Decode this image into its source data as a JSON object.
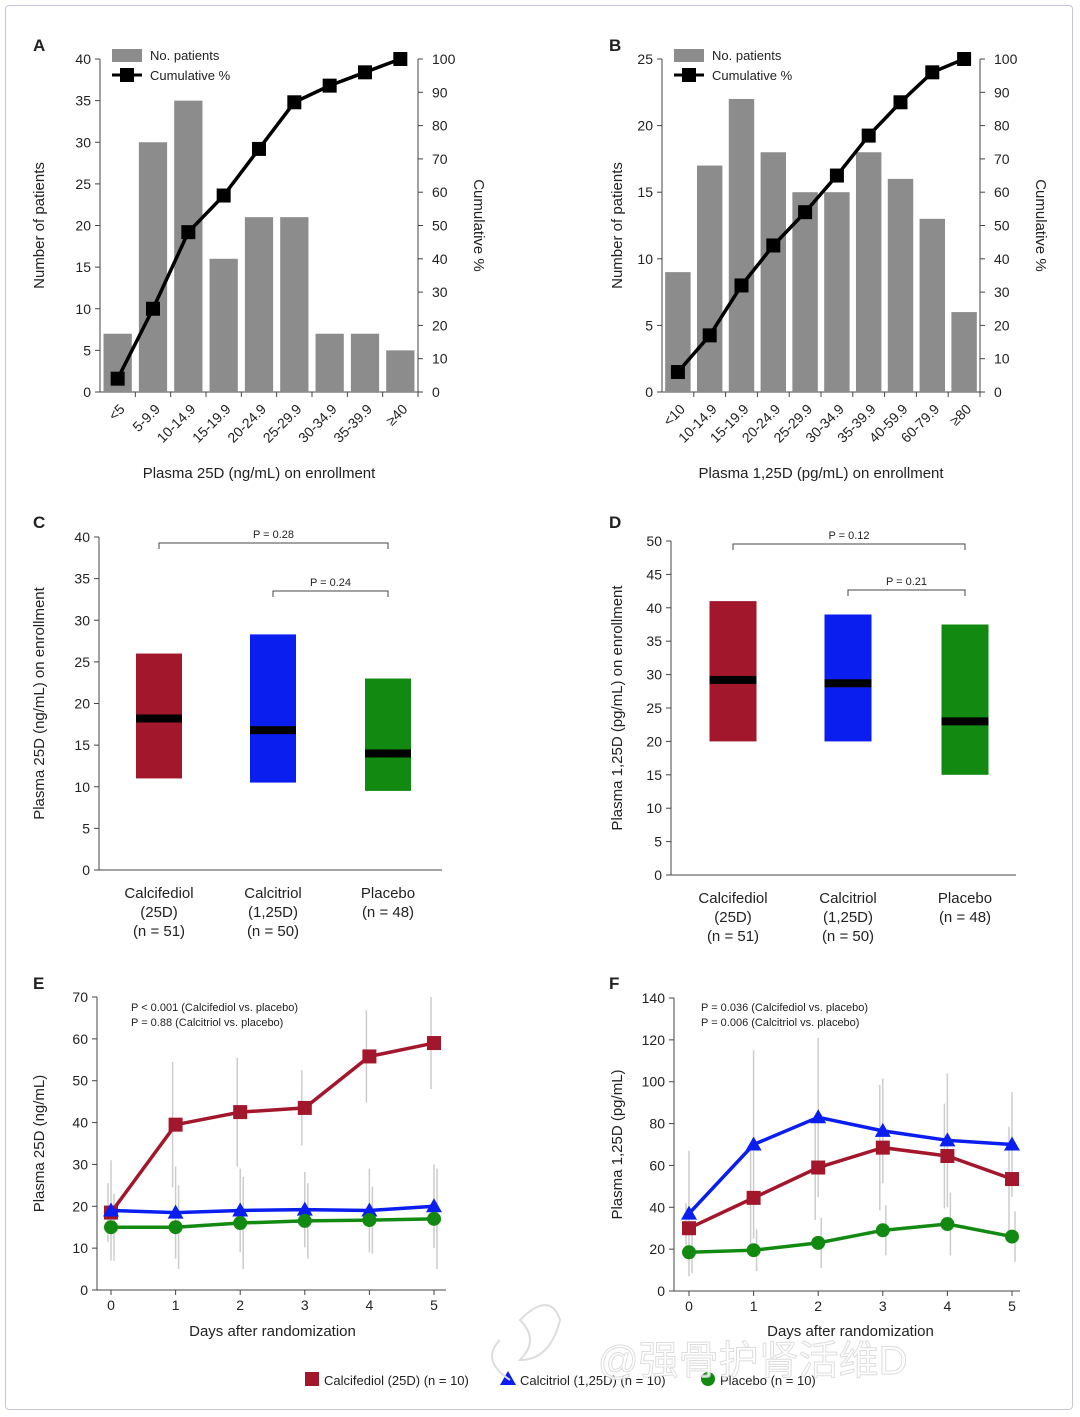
{
  "watermark": "@强骨护肾活维D",
  "colors": {
    "bar": "#8c8c8c",
    "line": "#000000",
    "calcifediol": "#a3172d",
    "calcitriol": "#0a1ef0",
    "placebo": "#128a12",
    "err": "#cccccc",
    "axis": "#444444"
  },
  "chart_data": [
    {
      "panel": "A",
      "type": "bar",
      "title": "",
      "categories": [
        "<5",
        "5-9.9",
        "10-14.9",
        "15-19.9",
        "20-24.9",
        "25-29.9",
        "30-34.9",
        "35-39.9",
        "≥40"
      ],
      "series": [
        {
          "name": "No. patients",
          "type": "bar",
          "values": [
            7,
            30,
            35,
            16,
            21,
            21,
            7,
            7,
            5
          ]
        },
        {
          "name": "Cumulative %",
          "type": "line",
          "axis": "right",
          "values": [
            4,
            25,
            48,
            59,
            73,
            87,
            92,
            96,
            100
          ]
        }
      ],
      "xlabel": "Plasma 25D (ng/mL) on enrollment",
      "ylabel": "Number of patients",
      "y2label": "Cumulative %",
      "ylim": [
        0,
        40
      ],
      "yticks": [
        "0",
        "5",
        "10",
        "15",
        "20",
        "25",
        "30",
        "35",
        "40"
      ],
      "y2lim": [
        0,
        100
      ],
      "y2ticks": [
        "0",
        "10",
        "20",
        "30",
        "40",
        "50",
        "60",
        "70",
        "80",
        "90",
        "100"
      ],
      "legend": "top-left"
    },
    {
      "panel": "B",
      "type": "bar",
      "title": "",
      "categories": [
        "<10",
        "10-14.9",
        "15-19.9",
        "20-24.9",
        "25-29.9",
        "30-34.9",
        "35-39.9",
        "40-59.9",
        "60-79.9",
        "≥80"
      ],
      "series": [
        {
          "name": "No. patients",
          "type": "bar",
          "values": [
            9,
            17,
            22,
            18,
            15,
            15,
            18,
            16,
            13,
            6
          ]
        },
        {
          "name": "Cumulative %",
          "type": "line",
          "axis": "right",
          "values": [
            6,
            17,
            32,
            44,
            54,
            65,
            77,
            87,
            96,
            100
          ]
        }
      ],
      "xlabel": "Plasma 1,25D (pg/mL) on enrollment",
      "ylabel": "Number of patients",
      "y2label": "Cumulative %",
      "ylim": [
        0,
        25
      ],
      "yticks": [
        "0",
        "5",
        "10",
        "15",
        "20",
        "25"
      ],
      "y2lim": [
        0,
        100
      ],
      "y2ticks": [
        "0",
        "10",
        "20",
        "30",
        "40",
        "50",
        "60",
        "70",
        "80",
        "90",
        "100"
      ],
      "legend": "top-left"
    },
    {
      "panel": "C",
      "type": "box",
      "groups": [
        {
          "lines": [
            "Calcifediol",
            "(25D)",
            "(n = 51)"
          ],
          "low": 11,
          "high": 26,
          "median": 18.2,
          "color": "#a3172d"
        },
        {
          "lines": [
            "Calcitriol",
            "(1,25D)",
            "(n = 50)"
          ],
          "low": 10.5,
          "high": 28.3,
          "median": 16.8,
          "color": "#0a1ef0"
        },
        {
          "lines": [
            "Placebo",
            "(n = 48)"
          ],
          "low": 9.5,
          "high": 23,
          "median": 14,
          "color": "#128a12"
        }
      ],
      "ylabel": "Plasma 25D (ng/mL) on enrollment",
      "ylim": [
        0,
        40
      ],
      "yticks": [
        "0",
        "5",
        "10",
        "15",
        "20",
        "25",
        "30",
        "35",
        "40"
      ],
      "comparisons": [
        {
          "from": 0,
          "to": 2,
          "label": "P = 0.28"
        },
        {
          "from": 1,
          "to": 2,
          "label": "P = 0.24"
        }
      ]
    },
    {
      "panel": "D",
      "type": "box",
      "groups": [
        {
          "lines": [
            "Calcifediol",
            "(25D)",
            "(n = 51)"
          ],
          "low": 20,
          "high": 41,
          "median": 29.2,
          "color": "#a3172d"
        },
        {
          "lines": [
            "Calcitriol",
            "(1,25D)",
            "(n = 50)"
          ],
          "low": 20,
          "high": 39,
          "median": 28.7,
          "color": "#0a1ef0"
        },
        {
          "lines": [
            "Placebo",
            "(n = 48)"
          ],
          "low": 15,
          "high": 37.5,
          "median": 23,
          "color": "#128a12"
        }
      ],
      "ylabel": "Plasma 1,25D (pg/mL) on enrollment",
      "ylim": [
        0,
        50
      ],
      "yticks": [
        "0",
        "5",
        "10",
        "15",
        "20",
        "25",
        "30",
        "35",
        "40",
        "45",
        "50"
      ],
      "comparisons": [
        {
          "from": 0,
          "to": 2,
          "label": "P = 0.12"
        },
        {
          "from": 1,
          "to": 2,
          "label": "P = 0.21"
        }
      ]
    },
    {
      "panel": "E",
      "type": "line",
      "x": [
        0,
        1,
        2,
        3,
        4,
        5
      ],
      "xticks": [
        "0",
        "1",
        "2",
        "3",
        "4",
        "5"
      ],
      "xlabel": "Days after randomization",
      "ylabel": "Plasma 25D (ng/mL)",
      "ylim": [
        0,
        70
      ],
      "yticks": [
        "0",
        "10",
        "20",
        "30",
        "40",
        "50",
        "60",
        "70"
      ],
      "annotations": [
        "P < 0.001 (Calcifediol vs. placebo)",
        "P = 0.88 (Calcitriol vs. placebo)"
      ],
      "series": [
        {
          "name": "Calcifediol (25D) (n = 10)",
          "marker": "square",
          "color": "#a3172d",
          "values": [
            18.5,
            39.5,
            42.5,
            43.5,
            55.8,
            59
          ],
          "err": [
            7,
            15,
            13,
            9,
            11,
            11
          ]
        },
        {
          "name": "Calcitriol (1,25D) (n = 10)",
          "marker": "triangle",
          "color": "#0a1ef0",
          "values": [
            19,
            18.5,
            19,
            19.2,
            19,
            20
          ],
          "err": [
            12,
            11,
            10,
            9,
            10,
            10
          ]
        },
        {
          "name": "Placebo (n = 10)",
          "marker": "circle",
          "color": "#128a12",
          "values": [
            15,
            15,
            16,
            16.5,
            16.7,
            17
          ],
          "err": [
            8,
            10,
            11,
            9,
            8,
            12
          ]
        }
      ]
    },
    {
      "panel": "F",
      "type": "line",
      "x": [
        0,
        1,
        2,
        3,
        4,
        5
      ],
      "xticks": [
        "0",
        "1",
        "2",
        "3",
        "4",
        "5"
      ],
      "xlabel": "Days after randomization",
      "ylabel": "Plasma 1,25D (pg/mL)",
      "ylim": [
        0,
        140
      ],
      "yticks": [
        "0",
        "20",
        "40",
        "60",
        "80",
        "100",
        "120",
        "140"
      ],
      "annotations": [
        "P = 0.036 (Calcifediol vs. placebo)",
        "P = 0.006 (Calcitriol vs. placebo)"
      ],
      "series": [
        {
          "name": "Calcifediol (25D) (n = 10)",
          "marker": "square",
          "color": "#a3172d",
          "values": [
            30,
            44.5,
            59,
            68.5,
            64.5,
            53.5
          ],
          "err": [
            12,
            25,
            25,
            30,
            25,
            25
          ]
        },
        {
          "name": "Calcitriol (1,25D) (n = 10)",
          "marker": "triangle",
          "color": "#0a1ef0",
          "values": [
            37,
            70,
            83,
            76.5,
            72,
            70
          ],
          "err": [
            30,
            45,
            38,
            25,
            32,
            25
          ]
        },
        {
          "name": "Placebo (n = 10)",
          "marker": "circle",
          "color": "#128a12",
          "values": [
            18.5,
            19.5,
            23,
            29,
            32,
            26
          ],
          "err": [
            10,
            10,
            12,
            12,
            15,
            12
          ]
        }
      ]
    }
  ],
  "legend": {
    "items": [
      "Calcifediol (25D) (n = 10)",
      "Calcitriol (1,25D) (n = 10)",
      "Placebo (n = 10)"
    ]
  }
}
